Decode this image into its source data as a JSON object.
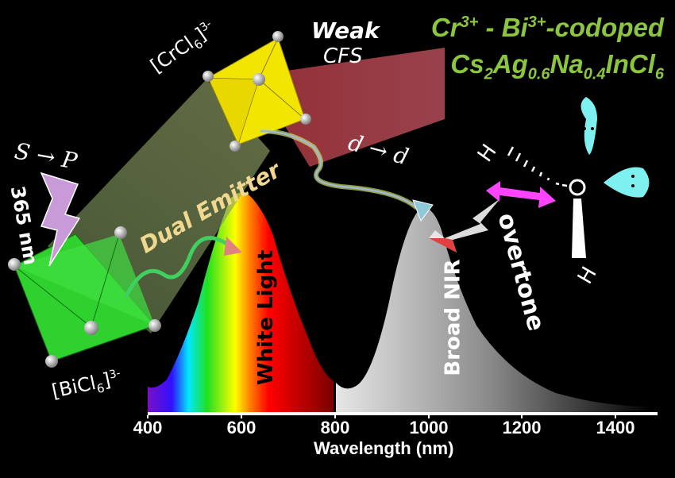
{
  "title": {
    "line1": {
      "cr": "Cr",
      "cr_charge": "3+",
      "sep": " - Bi",
      "bi_charge": "3+",
      "rest": "-codoped"
    },
    "line2": {
      "cs": "Cs",
      "cs_sub": "2",
      "ag": "Ag",
      "ag_sub": "0.6",
      "na": "Na",
      "na_sub": "0.4",
      "incl": "InCl",
      "cl_sub": "6"
    }
  },
  "labels": {
    "crcl6": {
      "base": "[CrCl",
      "sub": "6",
      "end": "]",
      "charge": "3-"
    },
    "bicl6": {
      "base": "[BiCl",
      "sub": "6",
      "end": "]",
      "charge": "3-"
    },
    "weak": "Weak",
    "cfs": "CFS",
    "s_to_p": "S → P",
    "excitation": "365 nm",
    "dual_emitter": "Dual Emitter",
    "white_light": "White Light",
    "broad_nir": "Broad NIR",
    "d_to_d": "d → d",
    "overtone": "overtone",
    "h1": "H",
    "h2": "H"
  },
  "axis": {
    "xlabel": "Wavelength (nm)",
    "ticks": [
      "400",
      "600",
      "800",
      "1000",
      "1200",
      "1400"
    ]
  },
  "colors": {
    "title_green": "#8cc63f",
    "cr_octahedron": "#f2e600",
    "bi_octahedron": "#2fd12f",
    "lone_pair": "#7ff0f0",
    "overtone_arrow": "#ff44ff",
    "excitation_bolt": "#c89bd8"
  }
}
